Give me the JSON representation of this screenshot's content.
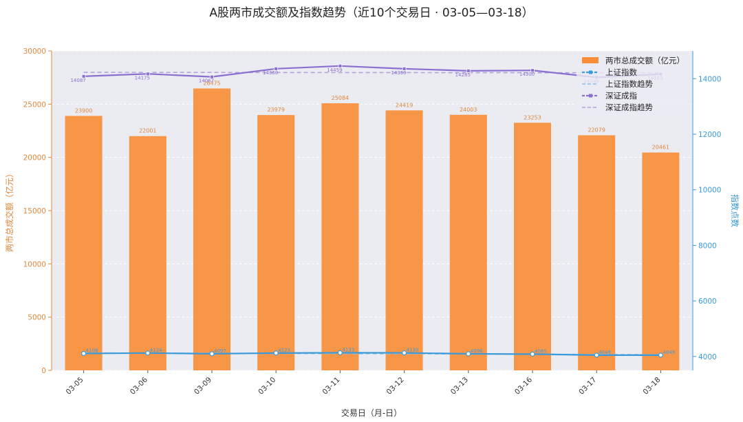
{
  "chart_data": {
    "type": "bar",
    "title": "A股两市成交额及指数趋势（近10个交易日 · 03-05—03-18）",
    "xlabel": "交易日（月-日）",
    "ylabel_left": "两市总成交额（亿元）",
    "ylabel_right": "指数点数",
    "categories": [
      "03-05",
      "03-06",
      "03-09",
      "03-10",
      "03-11",
      "03-12",
      "03-13",
      "03-16",
      "03-17",
      "03-18"
    ],
    "ylim_left": [
      0,
      30000
    ],
    "yticks_left": [
      0,
      5000,
      10000,
      15000,
      20000,
      25000,
      30000
    ],
    "ylim_right": [
      3500,
      15000
    ],
    "yticks_right": [
      4000,
      6000,
      8000,
      10000,
      12000,
      14000
    ],
    "grid": true,
    "legend_position": "top-right",
    "series": [
      {
        "name": "两市总成交额（亿元）",
        "type": "bar",
        "axis": "left",
        "color": "#f98e3a",
        "values": [
          23900,
          22001,
          26475,
          23979,
          25084,
          24419,
          24003,
          23253,
          22079,
          20461
        ],
        "labels": [
          "23900",
          "22001",
          "26475",
          "23979",
          "25084",
          "24419",
          "24003",
          "23253",
          "22079",
          "20461"
        ]
      },
      {
        "name": "上证指数",
        "type": "line",
        "axis": "right",
        "color": "#3a9ad9",
        "values": [
          4108,
          4124,
          4097,
          4123,
          4133,
          4130,
          4096,
          4085,
          4049,
          4049
        ],
        "labels": [
          "4108",
          "4124",
          "4097",
          "4123",
          "4133",
          "4130",
          "4096",
          "4085",
          "4049",
          "4049"
        ]
      },
      {
        "name": "上证指数趋势",
        "type": "trend",
        "axis": "right",
        "color": "#8bbfe6",
        "values": [
          4130,
          4123,
          4116,
          4109,
          4102,
          4095,
          4088,
          4081,
          4074,
          4067
        ]
      },
      {
        "name": "深证成指",
        "type": "line",
        "axis": "right",
        "color": "#8b6fd0",
        "values": [
          14087,
          14175,
          14067,
          14360,
          14459,
          14359,
          14285,
          14300,
          14049,
          14163
        ],
        "labels": [
          "14087",
          "14175",
          "14067",
          "14360",
          "14459",
          "14359",
          "14285",
          "14300",
          "14049",
          "14163"
        ]
      },
      {
        "name": "深证成指趋势",
        "type": "trend",
        "axis": "right",
        "color": "#b3a3dd",
        "values": [
          14230,
          14228,
          14226,
          14224,
          14222,
          14220,
          14218,
          14216,
          14214,
          14212
        ]
      }
    ]
  }
}
